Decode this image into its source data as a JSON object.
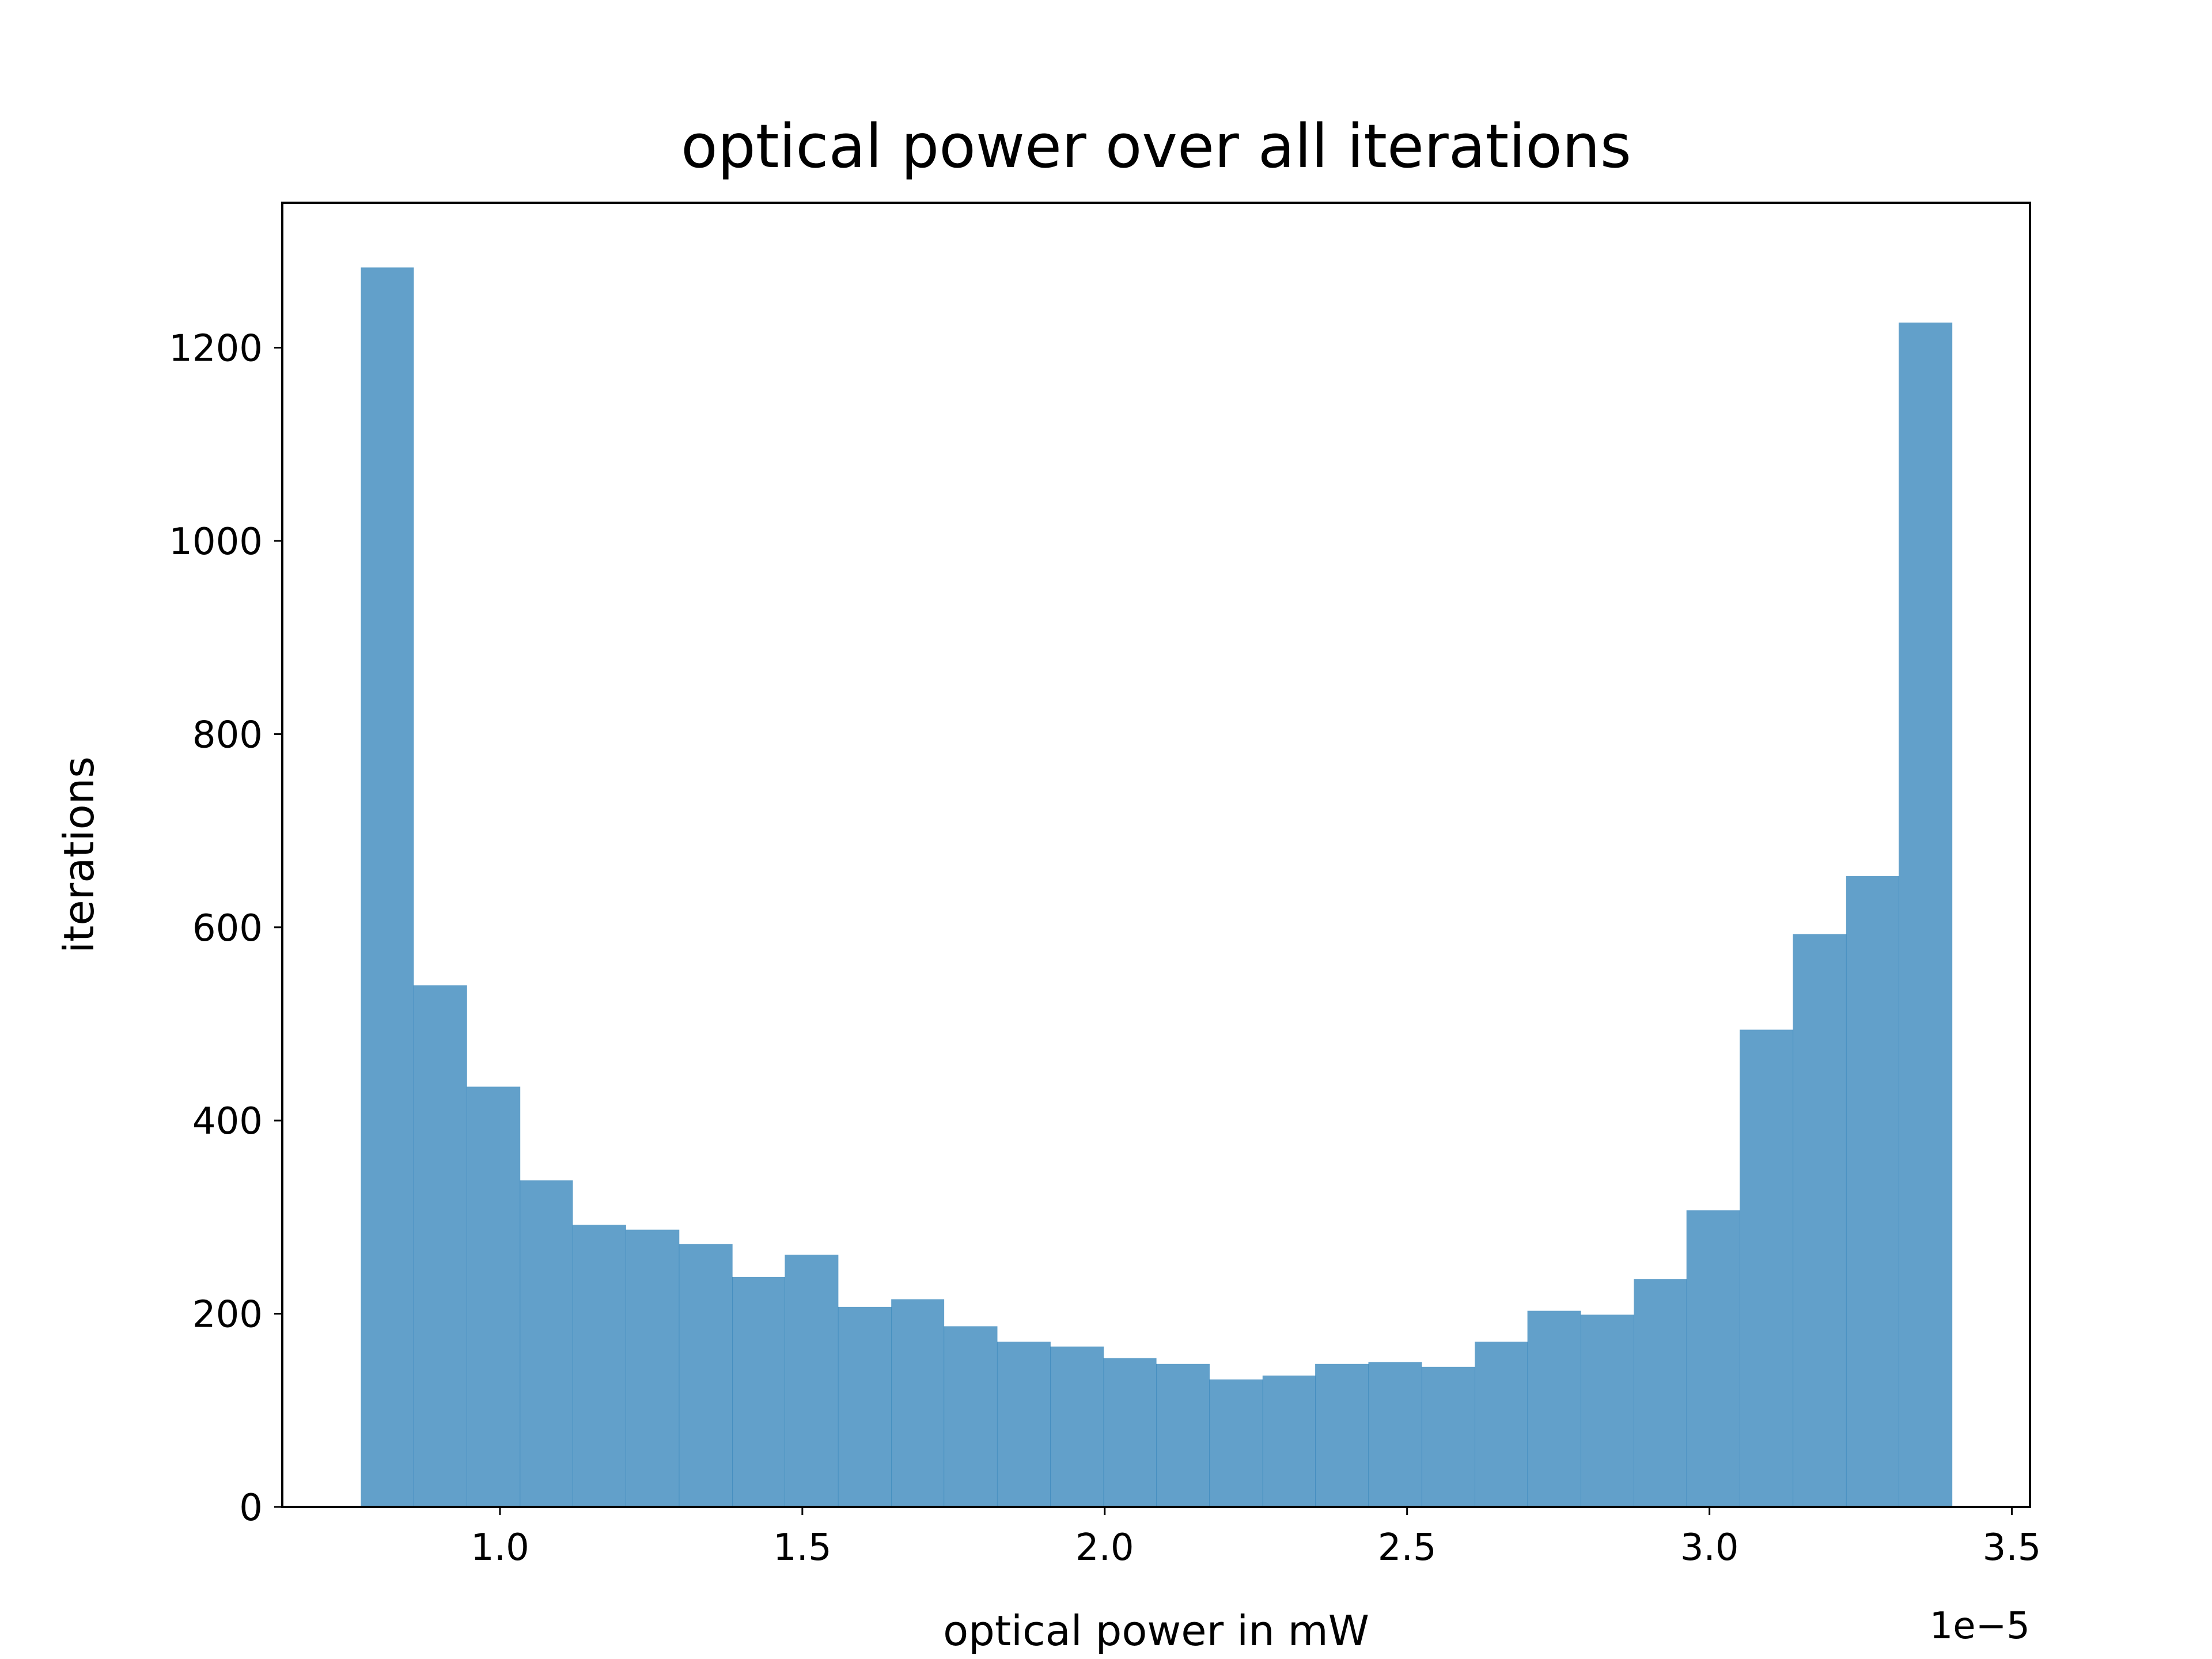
{
  "chart_data": {
    "type": "bar",
    "subtype": "histogram",
    "title": "optical power over all iterations",
    "xlabel": "optical power in mW",
    "ylabel": "iterations",
    "x_offset_label": "1e−5",
    "xlim": [
      0.64,
      3.53
    ],
    "ylim": [
      0,
      1350
    ],
    "grid": false,
    "x_ticks": [
      1.0,
      1.5,
      2.0,
      2.5,
      3.0,
      3.5
    ],
    "x_tick_labels": [
      "1.0",
      "1.5",
      "2.0",
      "2.5",
      "3.0",
      "3.5"
    ],
    "y_ticks": [
      0,
      200,
      400,
      600,
      800,
      1000,
      1200
    ],
    "y_tick_labels": [
      "0",
      "200",
      "400",
      "600",
      "800",
      "1000",
      "1200"
    ],
    "bin_edges": [
      0.77,
      0.857,
      0.945,
      1.033,
      1.12,
      1.208,
      1.296,
      1.384,
      1.471,
      1.559,
      1.647,
      1.734,
      1.822,
      1.91,
      1.998,
      2.085,
      2.173,
      2.261,
      2.348,
      2.436,
      2.524,
      2.612,
      2.699,
      2.787,
      2.875,
      2.962,
      3.05,
      3.138,
      3.226,
      3.313,
      3.401
    ],
    "values": [
      1283,
      540,
      435,
      338,
      292,
      287,
      272,
      238,
      261,
      207,
      215,
      187,
      171,
      166,
      154,
      148,
      132,
      136,
      148,
      150,
      145,
      171,
      203,
      199,
      236,
      307,
      494,
      593,
      653,
      1226
    ],
    "bar_color": "#1f77b4",
    "bar_alpha": 0.7
  }
}
